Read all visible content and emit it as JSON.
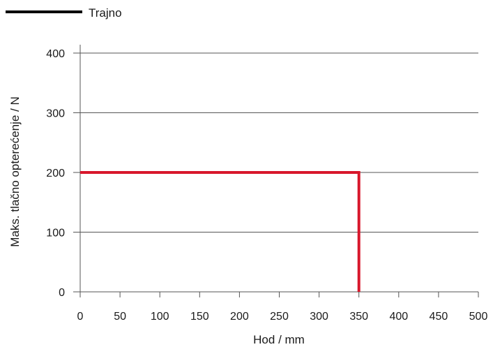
{
  "chart_data": {
    "type": "line",
    "legend": {
      "position": "top-left",
      "label": "Trajno",
      "swatch_color": "#000000"
    },
    "xlabel": "Hod / mm",
    "ylabel": "Maks. tlačno opterećenje / N",
    "xlim": [
      0,
      500
    ],
    "ylim": [
      0,
      400
    ],
    "x_ticks": [
      0,
      50,
      100,
      150,
      200,
      250,
      300,
      350,
      400,
      450,
      500
    ],
    "y_ticks": [
      0,
      100,
      200,
      300,
      400
    ],
    "grid": "horizontal",
    "series": [
      {
        "color": "#d8172b",
        "points": [
          [
            0,
            200
          ],
          [
            350,
            200
          ],
          [
            350,
            0
          ]
        ]
      }
    ]
  }
}
